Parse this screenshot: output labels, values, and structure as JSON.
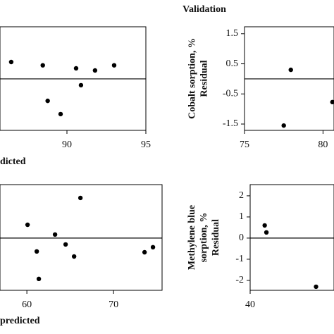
{
  "title": "Validation",
  "chart_data": [
    {
      "type": "scatter",
      "xlabel": "dicted",
      "x": [
        86.47,
        88.47,
        88.78,
        89.6,
        90.58,
        90.89,
        91.78,
        92.99
      ],
      "values": [
        0.56,
        0.45,
        -0.73,
        -1.17,
        0.35,
        -0.21,
        0.28,
        0.45
      ],
      "xlim": [
        85.76,
        95
      ],
      "xticks": [
        90,
        95
      ],
      "ylim": [
        -1.71,
        1.73
      ],
      "reference_line": 0,
      "color": "#000000"
    },
    {
      "type": "scatter",
      "ylabel": [
        "Cobalt sorption, %",
        "Residual"
      ],
      "x": [
        77.95,
        77.5,
        80.6
      ],
      "values": [
        0.3,
        -1.55,
        -0.77
      ],
      "xlim": [
        75,
        80.7
      ],
      "xticks": [
        75,
        80
      ],
      "ylim": [
        -1.71,
        1.73
      ],
      "yticks": [
        1.5,
        0.5,
        -0.5,
        -1.5
      ],
      "reference_line": 0,
      "color": "#000000"
    },
    {
      "type": "scatter",
      "xlabel": "predicted",
      "x": [
        60.08,
        61.14,
        61.38,
        63.25,
        64.47,
        65.45,
        66.18,
        73.58,
        74.55
      ],
      "values": [
        0.63,
        -0.63,
        -1.93,
        0.17,
        -0.3,
        -0.87,
        1.9,
        -0.67,
        -0.43
      ],
      "xlim": [
        56.9,
        75.6
      ],
      "xticks": [
        60,
        70
      ],
      "ylim": [
        -2.47,
        2.53
      ],
      "reference_line": 0,
      "color": "#000000"
    },
    {
      "type": "scatter",
      "ylabel": [
        "Methylene blue",
        "sorption, %",
        "Residual"
      ],
      "x": [
        41.7,
        41.9,
        47.7
      ],
      "values": [
        0.6,
        0.27,
        -2.3
      ],
      "xlim": [
        40,
        49.8
      ],
      "xticks": [
        40
      ],
      "ylim": [
        -2.47,
        2.53
      ],
      "yticks": [
        2,
        1,
        0,
        -1,
        -2
      ],
      "reference_line": 0,
      "color": "#000000"
    }
  ]
}
